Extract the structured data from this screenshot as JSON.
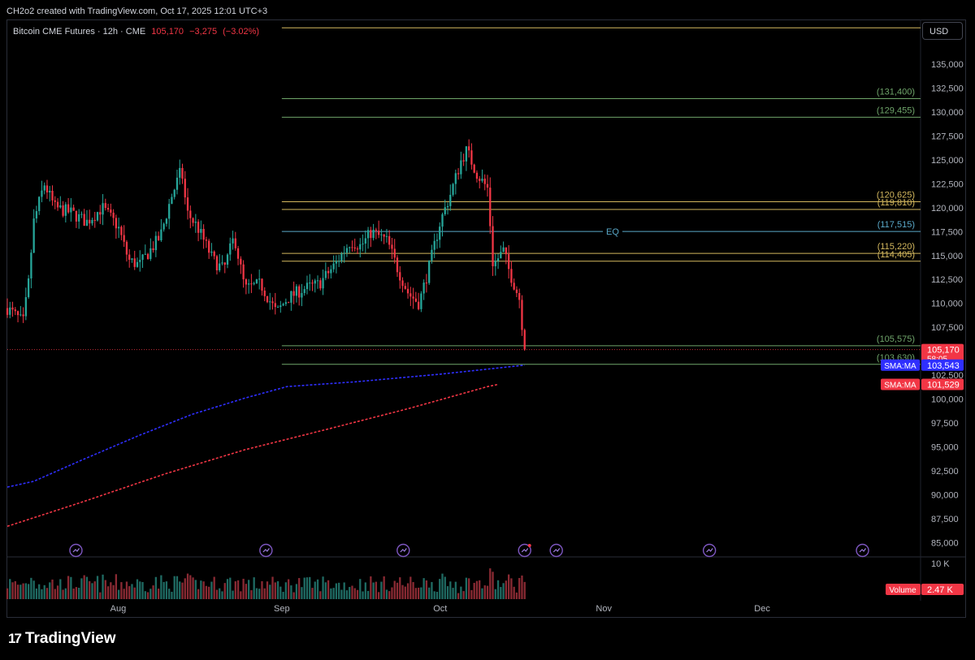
{
  "header": {
    "attribution": "CH2o2 created with TradingView.com, Oct 17, 2025 12:01 UTC+3",
    "symbol": "Bitcoin CME Futures · 12h · CME",
    "last_price": "105,170",
    "change": "−3,275",
    "change_pct": "(−3.02%)",
    "currency": "USD"
  },
  "footer": {
    "logo_text": "TradingView",
    "logo_mark": "17"
  },
  "colors": {
    "bull": "#26a69a",
    "bear": "#f23645",
    "gold": "#d4b85e",
    "green_level": "#6fa56a",
    "teal_level": "#5aa9c9",
    "sma_fast": "#2f2fff",
    "sma_slow": "#f23645"
  },
  "chart_data": {
    "type": "candlestick",
    "timeframe": "12h",
    "x_range": [
      "2025-07-11",
      "2025-12-31"
    ],
    "x_ticks": [
      {
        "date": "2025-08-01",
        "label": "Aug"
      },
      {
        "date": "2025-09-01",
        "label": "Sep"
      },
      {
        "date": "2025-10-01",
        "label": "Oct"
      },
      {
        "date": "2025-11-01",
        "label": "Nov"
      },
      {
        "date": "2025-12-01",
        "label": "Dec"
      }
    ],
    "y_range": [
      83500,
      139500
    ],
    "y_ticks": [
      "85,000",
      "87,500",
      "90,000",
      "92,500",
      "95,000",
      "97,500",
      "100,000",
      "102,500",
      "105,000",
      "107,500",
      "110,000",
      "112,500",
      "115,000",
      "117,500",
      "120,000",
      "122,500",
      "125,000",
      "127,500",
      "130,000",
      "132,500",
      "135,000"
    ],
    "last_price_label": "105,170",
    "countdown": "58:05",
    "price_anchors": [
      [
        "2025-07-11",
        109500
      ],
      [
        "2025-07-14",
        108000
      ],
      [
        "2025-07-15",
        112000
      ],
      [
        "2025-07-16",
        118500
      ],
      [
        "2025-07-18",
        122500
      ],
      [
        "2025-07-20",
        120000
      ],
      [
        "2025-07-23",
        119500
      ],
      [
        "2025-07-26",
        118500
      ],
      [
        "2025-07-29",
        120000
      ],
      [
        "2025-08-01",
        118000
      ],
      [
        "2025-08-03",
        114500
      ],
      [
        "2025-08-05",
        114000
      ],
      [
        "2025-08-07",
        115500
      ],
      [
        "2025-08-09",
        117000
      ],
      [
        "2025-08-11",
        121000
      ],
      [
        "2025-08-13",
        124000
      ],
      [
        "2025-08-14",
        119500
      ],
      [
        "2025-08-16",
        118000
      ],
      [
        "2025-08-19",
        114500
      ],
      [
        "2025-08-21",
        113500
      ],
      [
        "2025-08-23",
        117000
      ],
      [
        "2025-08-25",
        111500
      ],
      [
        "2025-08-28",
        112000
      ],
      [
        "2025-08-31",
        109000
      ],
      [
        "2025-09-02",
        110500
      ],
      [
        "2025-09-05",
        111500
      ],
      [
        "2025-09-08",
        112000
      ],
      [
        "2025-09-11",
        114000
      ],
      [
        "2025-09-14",
        116500
      ],
      [
        "2025-09-16",
        116000
      ],
      [
        "2025-09-18",
        117500
      ],
      [
        "2025-09-21",
        116500
      ],
      [
        "2025-09-23",
        113500
      ],
      [
        "2025-09-25",
        111000
      ],
      [
        "2025-09-27",
        110000
      ],
      [
        "2025-09-29",
        114000
      ],
      [
        "2025-10-01",
        118500
      ],
      [
        "2025-10-03",
        121500
      ],
      [
        "2025-10-05",
        125000
      ],
      [
        "2025-10-06",
        126000
      ],
      [
        "2025-10-08",
        123500
      ],
      [
        "2025-10-10",
        122000
      ],
      [
        "2025-10-11",
        114000
      ],
      [
        "2025-10-13",
        115500
      ],
      [
        "2025-10-14",
        113500
      ],
      [
        "2025-10-15",
        112000
      ],
      [
        "2025-10-16",
        110500
      ],
      [
        "2025-10-17",
        105170
      ]
    ],
    "candle_count": 196,
    "levels": [
      {
        "value": 138800,
        "color": "gold",
        "label": "",
        "from": "2025-09-01"
      },
      {
        "value": 131400,
        "color": "green_level",
        "label": "(131,400)",
        "from": "2025-09-01"
      },
      {
        "value": 129455,
        "color": "green_level",
        "label": "(129,455)",
        "from": "2025-09-01"
      },
      {
        "value": 120625,
        "color": "gold",
        "label": "(120,625)",
        "from": "2025-09-01"
      },
      {
        "value": 119810,
        "color": "gold",
        "label": "(119,810)",
        "from": "2025-09-01"
      },
      {
        "value": 117515,
        "color": "teal_level",
        "label": "(117,515)",
        "from": "2025-09-01",
        "mid_label": "EQ"
      },
      {
        "value": 115220,
        "color": "gold",
        "label": "(115,220)",
        "from": "2025-09-01"
      },
      {
        "value": 114405,
        "color": "gold",
        "label": "(114,405)",
        "from": "2025-09-01"
      },
      {
        "value": 105575,
        "color": "green_level",
        "label": "(105,575)",
        "from": "2025-09-01"
      },
      {
        "value": 103630,
        "color": "green_level",
        "label": "(103,630)",
        "from": "2025-09-01"
      }
    ],
    "series": [
      {
        "name": "SMA:MA",
        "value_label": "103,543",
        "color": "sma_fast",
        "style": "dashed",
        "points": [
          [
            "2025-07-11",
            90800
          ],
          [
            "2025-07-16",
            91400
          ],
          [
            "2025-07-25",
            93600
          ],
          [
            "2025-08-05",
            96200
          ],
          [
            "2025-08-15",
            98400
          ],
          [
            "2025-08-25",
            100100
          ],
          [
            "2025-09-02",
            101300
          ],
          [
            "2025-09-15",
            101800
          ],
          [
            "2025-10-01",
            102600
          ],
          [
            "2025-10-17",
            103543
          ]
        ]
      },
      {
        "name": "SMA:MA",
        "value_label": "101,529",
        "color": "sma_slow",
        "style": "dashed",
        "points": [
          [
            "2025-07-11",
            86700
          ],
          [
            "2025-07-25",
            89200
          ],
          [
            "2025-08-10",
            92200
          ],
          [
            "2025-08-25",
            94700
          ],
          [
            "2025-09-10",
            96900
          ],
          [
            "2025-09-25",
            99000
          ],
          [
            "2025-10-10",
            101300
          ],
          [
            "2025-10-12",
            101529
          ]
        ]
      }
    ],
    "volume": {
      "axis_label": "10 K",
      "legend": "Volume",
      "value_label": "2.47 K",
      "max": 10000
    },
    "event_markers": [
      "2025-07-24",
      "2025-08-29",
      "2025-09-24",
      "2025-10-17",
      "2025-10-23",
      "2025-11-21",
      "2025-12-20"
    ]
  }
}
